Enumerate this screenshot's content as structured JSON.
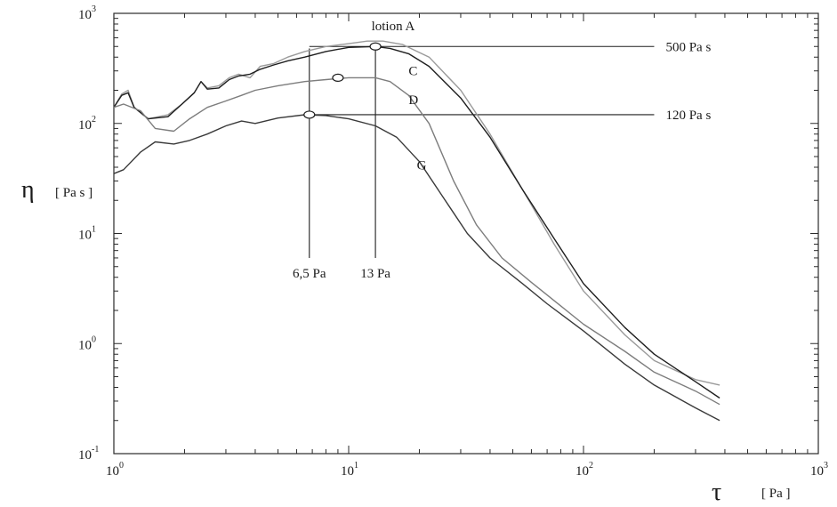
{
  "chart_data": {
    "type": "line",
    "xscale": "log",
    "yscale": "log",
    "xlim": [
      1,
      1000
    ],
    "ylim": [
      0.1,
      1000
    ],
    "x_ticks": [
      {
        "base": "10",
        "exp": "0",
        "value": 1
      },
      {
        "base": "10",
        "exp": "1",
        "value": 10
      },
      {
        "base": "10",
        "exp": "2",
        "value": 100
      },
      {
        "base": "10",
        "exp": "3",
        "value": 1000
      }
    ],
    "y_ticks": [
      {
        "base": "10",
        "exp": "-1",
        "value": 0.1
      },
      {
        "base": "10",
        "exp": "0",
        "value": 1
      },
      {
        "base": "10",
        "exp": "1",
        "value": 10
      },
      {
        "base": "10",
        "exp": "2",
        "value": 100
      },
      {
        "base": "10",
        "exp": "3",
        "value": 1000
      }
    ],
    "xlabel_symbol": "τ",
    "xlabel_unit": "[ Pa ]",
    "ylabel_symbol": "η",
    "ylabel_unit": "[ Pa s ]",
    "grid": false,
    "series": [
      {
        "name": "lotion A",
        "color": "#9a9a9a",
        "points": [
          [
            1,
            140
          ],
          [
            1.08,
            185
          ],
          [
            1.15,
            200
          ],
          [
            1.22,
            140
          ],
          [
            1.4,
            110
          ],
          [
            1.7,
            120
          ],
          [
            1.95,
            150
          ],
          [
            2.2,
            190
          ],
          [
            2.35,
            240
          ],
          [
            2.5,
            210
          ],
          [
            2.8,
            220
          ],
          [
            3.1,
            260
          ],
          [
            3.4,
            280
          ],
          [
            3.8,
            260
          ],
          [
            4.2,
            330
          ],
          [
            4.8,
            350
          ],
          [
            5.5,
            400
          ],
          [
            6.5,
            450
          ],
          [
            8,
            500
          ],
          [
            10,
            530
          ],
          [
            12,
            560
          ],
          [
            14,
            560
          ],
          [
            17,
            520
          ],
          [
            22,
            400
          ],
          [
            30,
            200
          ],
          [
            40,
            80
          ],
          [
            55,
            25
          ],
          [
            75,
            8
          ],
          [
            100,
            3
          ],
          [
            150,
            1.2
          ],
          [
            200,
            0.7
          ],
          [
            300,
            0.47
          ],
          [
            380,
            0.42
          ]
        ]
      },
      {
        "name": "C",
        "color": "#1e1e1e",
        "points": [
          [
            1,
            140
          ],
          [
            1.08,
            180
          ],
          [
            1.15,
            190
          ],
          [
            1.22,
            140
          ],
          [
            1.4,
            110
          ],
          [
            1.7,
            115
          ],
          [
            1.95,
            150
          ],
          [
            2.2,
            190
          ],
          [
            2.35,
            240
          ],
          [
            2.5,
            205
          ],
          [
            2.8,
            210
          ],
          [
            3.1,
            250
          ],
          [
            3.4,
            270
          ],
          [
            3.8,
            280
          ],
          [
            4.2,
            310
          ],
          [
            4.8,
            340
          ],
          [
            5.5,
            370
          ],
          [
            6.5,
            400
          ],
          [
            8,
            450
          ],
          [
            10,
            490
          ],
          [
            13,
            500
          ],
          [
            15,
            480
          ],
          [
            18,
            430
          ],
          [
            22,
            330
          ],
          [
            30,
            170
          ],
          [
            40,
            75
          ],
          [
            55,
            25
          ],
          [
            75,
            9
          ],
          [
            100,
            3.5
          ],
          [
            150,
            1.4
          ],
          [
            200,
            0.8
          ],
          [
            300,
            0.45
          ],
          [
            380,
            0.32
          ]
        ]
      },
      {
        "name": "D",
        "color": "#7d7d7d",
        "points": [
          [
            1,
            140
          ],
          [
            1.1,
            150
          ],
          [
            1.3,
            130
          ],
          [
            1.5,
            90
          ],
          [
            1.8,
            85
          ],
          [
            2.1,
            110
          ],
          [
            2.5,
            140
          ],
          [
            3,
            160
          ],
          [
            3.5,
            180
          ],
          [
            4,
            200
          ],
          [
            5,
            220
          ],
          [
            6.5,
            240
          ],
          [
            8,
            250
          ],
          [
            10,
            260
          ],
          [
            13,
            260
          ],
          [
            15,
            240
          ],
          [
            18,
            180
          ],
          [
            22,
            100
          ],
          [
            28,
            30
          ],
          [
            35,
            12
          ],
          [
            45,
            6
          ],
          [
            60,
            3.6
          ],
          [
            80,
            2.2
          ],
          [
            100,
            1.5
          ],
          [
            150,
            0.85
          ],
          [
            200,
            0.55
          ],
          [
            300,
            0.37
          ],
          [
            380,
            0.28
          ]
        ]
      },
      {
        "name": "G",
        "color": "#3a3a3a",
        "points": [
          [
            1,
            35
          ],
          [
            1.1,
            38
          ],
          [
            1.3,
            55
          ],
          [
            1.5,
            68
          ],
          [
            1.8,
            65
          ],
          [
            2.1,
            70
          ],
          [
            2.5,
            80
          ],
          [
            3,
            95
          ],
          [
            3.5,
            105
          ],
          [
            4,
            100
          ],
          [
            5,
            112
          ],
          [
            6.5,
            120
          ],
          [
            8,
            118
          ],
          [
            10,
            110
          ],
          [
            13,
            95
          ],
          [
            16,
            75
          ],
          [
            20,
            45
          ],
          [
            25,
            22
          ],
          [
            32,
            10
          ],
          [
            40,
            6
          ],
          [
            55,
            3.5
          ],
          [
            70,
            2.3
          ],
          [
            100,
            1.3
          ],
          [
            150,
            0.65
          ],
          [
            200,
            0.42
          ],
          [
            300,
            0.26
          ],
          [
            380,
            0.2
          ]
        ]
      }
    ],
    "annotations": {
      "curve_labels": [
        {
          "text": "lotion A",
          "x": 12.5,
          "y": 770,
          "color": "#9a9a9a"
        },
        {
          "text": "C",
          "x": 18,
          "y": 300
        },
        {
          "text": "D",
          "x": 18,
          "y": 165
        },
        {
          "text": "G",
          "x": 19.5,
          "y": 42
        }
      ],
      "reference_lines": [
        {
          "label": "500 Pa s",
          "y": 500,
          "x_from": 6.8,
          "x_to": 200
        },
        {
          "label": "120 Pa s",
          "y": 120,
          "x_from": 6.8,
          "x_to": 200
        }
      ],
      "vertical_markers": [
        {
          "label": "6,5 Pa",
          "x": 6.8,
          "y_from": 480,
          "y_to": 6
        },
        {
          "label": "13 Pa",
          "x": 13,
          "y_from": 500,
          "y_to": 6
        }
      ],
      "points": [
        {
          "x": 6.8,
          "y": 120
        },
        {
          "x": 13,
          "y": 500
        },
        {
          "x": 9,
          "y": 260
        }
      ]
    }
  }
}
